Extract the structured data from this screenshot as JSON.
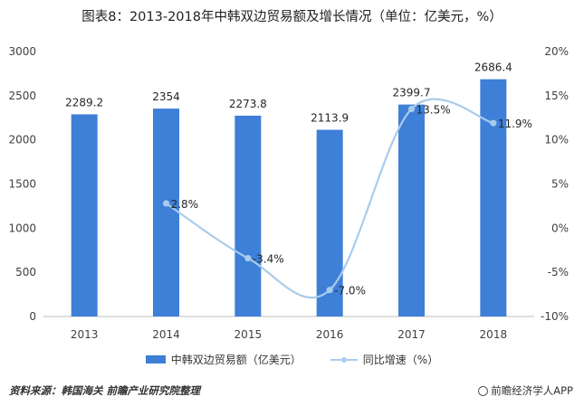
{
  "title": "图表8：2013-2018年中韩双边贸易额及增长情况（单位：亿美元，%）",
  "colors": {
    "bar": "#3E7FD8",
    "line": "#A9CCEB",
    "axis": "#BFBFBF"
  },
  "legend": {
    "bar_label": "中韩双边贸易额（亿美元）",
    "line_label": "同比增速（%）"
  },
  "footer": {
    "source": "资料来源：韩国海关  前瞻产业研究院整理",
    "brand": "前瞻经济学人APP"
  },
  "chart_data": {
    "type": "bar",
    "categories": [
      "2013",
      "2014",
      "2015",
      "2016",
      "2017",
      "2018"
    ],
    "series": [
      {
        "name": "中韩双边贸易额（亿美元）",
        "type": "bar",
        "axis": "left",
        "values": [
          2289.2,
          2354,
          2273.8,
          2113.9,
          2399.7,
          2686.4
        ],
        "labels": [
          "2289.2",
          "2354",
          "2273.8",
          "2113.9",
          "2399.7",
          "2686.4"
        ]
      },
      {
        "name": "同比增速（%）",
        "type": "line",
        "axis": "right",
        "values": [
          null,
          2.8,
          -3.4,
          -7.0,
          13.5,
          11.9
        ],
        "labels": [
          "",
          "2.8%",
          "-3.4%",
          "-7.0%",
          "13.5%",
          "11.9%"
        ]
      }
    ],
    "ylim_left": [
      0,
      3000
    ],
    "yticks_left": [
      "0",
      "500",
      "1000",
      "1500",
      "2000",
      "2500",
      "3000"
    ],
    "ylim_right": [
      -10,
      20
    ],
    "yticks_right": [
      "-10%",
      "-5%",
      "0%",
      "5%",
      "10%",
      "15%",
      "20%"
    ],
    "grid": false,
    "legend_position": "bottom"
  }
}
